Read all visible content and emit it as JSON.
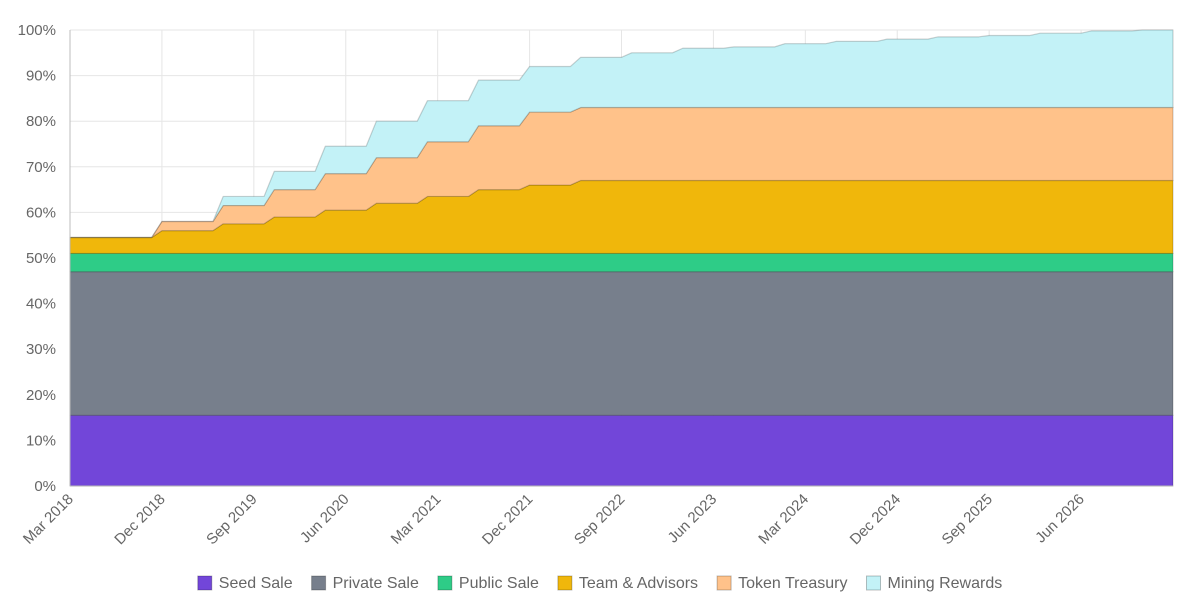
{
  "chart_data": {
    "type": "area",
    "stacked": true,
    "x_tick_labels": [
      "Mar 2018",
      "Dec 2018",
      "Sep 2019",
      "Jun 2020",
      "Mar 2021",
      "Dec 2021",
      "Sep 2022",
      "Jun 2023",
      "Mar 2024",
      "Dec 2024",
      "Sep 2025",
      "Jun 2026"
    ],
    "xlim": [
      "Mar 2018",
      "Mar 2027"
    ],
    "y_ticks": [
      "0%",
      "10%",
      "20%",
      "30%",
      "40%",
      "50%",
      "60%",
      "70%",
      "80%",
      "90%",
      "100%"
    ],
    "ylim": [
      0,
      100
    ],
    "grid": true,
    "legend_position": "bottom",
    "series": [
      {
        "name": "Seed Sale",
        "color": "#7246d9",
        "points": [
          [
            "2018-03",
            15.5
          ],
          [
            "2027-03",
            15.5
          ]
        ]
      },
      {
        "name": "Private Sale",
        "color": "#777f8c",
        "points": [
          [
            "2018-03",
            31.5
          ],
          [
            "2027-03",
            31.5
          ]
        ]
      },
      {
        "name": "Public Sale",
        "color": "#2ecc87",
        "points": [
          [
            "2018-03",
            4
          ],
          [
            "2027-03",
            4
          ]
        ]
      },
      {
        "name": "Team & Advisors",
        "color": "#f0b70b",
        "points": [
          [
            "2018-03",
            3.5
          ],
          [
            "2018-11",
            3.5
          ],
          [
            "2018-12",
            5
          ],
          [
            "2019-05",
            5
          ],
          [
            "2019-06",
            6.5
          ],
          [
            "2019-10",
            6.5
          ],
          [
            "2019-11",
            8
          ],
          [
            "2020-03",
            8
          ],
          [
            "2020-04",
            9.5
          ],
          [
            "2020-08",
            9.5
          ],
          [
            "2020-09",
            11
          ],
          [
            "2021-01",
            11
          ],
          [
            "2021-02",
            12.5
          ],
          [
            "2021-06",
            12.5
          ],
          [
            "2021-07",
            14
          ],
          [
            "2021-11",
            14
          ],
          [
            "2021-12",
            15
          ],
          [
            "2022-04",
            15
          ],
          [
            "2022-05",
            16
          ],
          [
            "2027-03",
            16
          ]
        ]
      },
      {
        "name": "Token Treasury",
        "color": "#ffc28a",
        "points": [
          [
            "2018-03",
            0
          ],
          [
            "2018-11",
            0
          ],
          [
            "2018-12",
            2
          ],
          [
            "2019-05",
            2
          ],
          [
            "2019-06",
            4
          ],
          [
            "2019-10",
            4
          ],
          [
            "2019-11",
            6
          ],
          [
            "2020-03",
            6
          ],
          [
            "2020-04",
            8
          ],
          [
            "2020-08",
            8
          ],
          [
            "2020-09",
            10
          ],
          [
            "2021-01",
            10
          ],
          [
            "2021-02",
            12
          ],
          [
            "2021-06",
            12
          ],
          [
            "2021-07",
            14
          ],
          [
            "2021-11",
            14
          ],
          [
            "2021-12",
            16
          ],
          [
            "2022-04",
            16
          ],
          [
            "2022-05",
            16
          ],
          [
            "2027-03",
            16
          ]
        ]
      },
      {
        "name": "Mining Rewards",
        "color": "#c3f2f7",
        "points": [
          [
            "2018-03",
            0
          ],
          [
            "2018-11",
            0
          ],
          [
            "2018-12",
            0
          ],
          [
            "2019-05",
            0
          ],
          [
            "2019-06",
            2
          ],
          [
            "2019-10",
            2
          ],
          [
            "2019-11",
            4
          ],
          [
            "2020-03",
            4
          ],
          [
            "2020-04",
            6
          ],
          [
            "2020-08",
            6
          ],
          [
            "2020-09",
            8
          ],
          [
            "2021-01",
            8
          ],
          [
            "2021-02",
            9
          ],
          [
            "2021-06",
            9
          ],
          [
            "2021-07",
            10
          ],
          [
            "2021-11",
            10
          ],
          [
            "2021-12",
            10
          ],
          [
            "2022-04",
            10
          ],
          [
            "2022-05",
            11
          ],
          [
            "2022-09",
            11
          ],
          [
            "2022-10",
            12
          ],
          [
            "2023-02",
            12
          ],
          [
            "2023-03",
            13
          ],
          [
            "2023-07",
            13
          ],
          [
            "2023-08",
            13.3
          ],
          [
            "2023-12",
            13.3
          ],
          [
            "2024-01",
            14
          ],
          [
            "2024-05",
            14
          ],
          [
            "2024-06",
            14.5
          ],
          [
            "2024-10",
            14.5
          ],
          [
            "2024-11",
            15
          ],
          [
            "2025-03",
            15
          ],
          [
            "2025-04",
            15.5
          ],
          [
            "2025-08",
            15.5
          ],
          [
            "2025-09",
            15.8
          ],
          [
            "2026-01",
            15.8
          ],
          [
            "2026-02",
            16.3
          ],
          [
            "2026-06",
            16.3
          ],
          [
            "2026-07",
            16.8
          ],
          [
            "2026-11",
            16.8
          ],
          [
            "2026-12",
            17
          ],
          [
            "2027-03",
            17
          ]
        ]
      }
    ]
  }
}
